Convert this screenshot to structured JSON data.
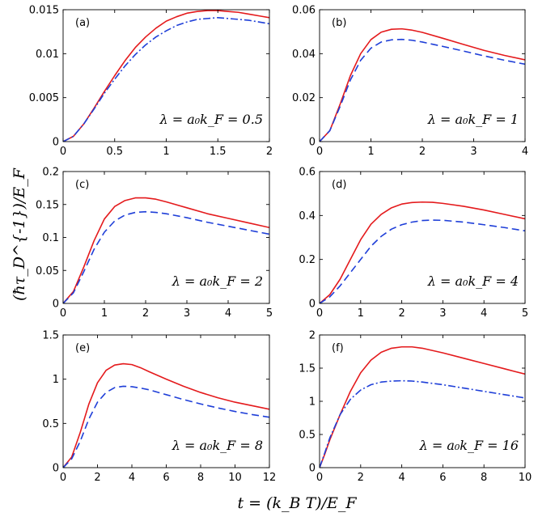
{
  "chart_data": {
    "type": "line",
    "xlabel": "t = (k_B T)/E_F",
    "ylabel": "(ħτ_D^{-1})/E_F",
    "colors": {
      "solid": "#e41a1c",
      "other": "#1f3fd8"
    },
    "panels": [
      {
        "label": "(a)",
        "lambda_text": "λ = a₀k_F = 0.5",
        "xlim": [
          0,
          2
        ],
        "ylim": [
          0,
          0.015
        ],
        "xticks": [
          0,
          0.5,
          1,
          1.5,
          2
        ],
        "xtick_labels": [
          "0",
          "0.5",
          "1",
          "1.5",
          "2"
        ],
        "yticks": [
          0,
          0.005,
          0.01,
          0.015
        ],
        "ytick_labels": [
          "0",
          "0.005",
          "0.01",
          "0.015"
        ],
        "series": [
          {
            "name": "red solid",
            "color": "#e41a1c",
            "dash": "solid",
            "x": [
              0,
              0.1,
              0.2,
              0.3,
              0.4,
              0.5,
              0.6,
              0.7,
              0.8,
              0.9,
              1.0,
              1.1,
              1.2,
              1.3,
              1.4,
              1.5,
              1.6,
              1.7,
              1.8,
              1.9,
              2.0
            ],
            "y": [
              0,
              0.0006,
              0.002,
              0.0038,
              0.0057,
              0.0075,
              0.0092,
              0.0107,
              0.0119,
              0.0129,
              0.0137,
              0.0142,
              0.0146,
              0.0148,
              0.0149,
              0.0149,
              0.0148,
              0.0147,
              0.0145,
              0.0143,
              0.0141
            ]
          },
          {
            "name": "blue dash-dot",
            "color": "#1f3fd8",
            "dash": "dashdot",
            "x": [
              0,
              0.1,
              0.2,
              0.3,
              0.4,
              0.5,
              0.6,
              0.7,
              0.8,
              0.9,
              1.0,
              1.1,
              1.2,
              1.3,
              1.4,
              1.5,
              1.6,
              1.7,
              1.8,
              1.9,
              2.0
            ],
            "y": [
              0,
              0.0006,
              0.002,
              0.0037,
              0.0055,
              0.0071,
              0.0086,
              0.0099,
              0.011,
              0.0119,
              0.0126,
              0.0132,
              0.0136,
              0.0139,
              0.014,
              0.0141,
              0.014,
              0.0139,
              0.0138,
              0.0136,
              0.0134
            ]
          }
        ]
      },
      {
        "label": "(b)",
        "lambda_text": "λ = a₀k_F = 1",
        "xlim": [
          0,
          4
        ],
        "ylim": [
          0,
          0.06
        ],
        "xticks": [
          0,
          1,
          2,
          3,
          4
        ],
        "xtick_labels": [
          "0",
          "1",
          "2",
          "3",
          "4"
        ],
        "yticks": [
          0,
          0.02,
          0.04,
          0.06
        ],
        "ytick_labels": [
          "0",
          "0.02",
          "0.04",
          "0.06"
        ],
        "series": [
          {
            "name": "red solid",
            "color": "#e41a1c",
            "dash": "solid",
            "x": [
              0,
              0.2,
              0.4,
              0.6,
              0.8,
              1.0,
              1.2,
              1.4,
              1.6,
              1.8,
              2.0,
              2.4,
              2.8,
              3.2,
              3.6,
              4.0
            ],
            "y": [
              0,
              0.005,
              0.017,
              0.03,
              0.04,
              0.0464,
              0.0498,
              0.0511,
              0.0513,
              0.0507,
              0.0497,
              0.047,
              0.0442,
              0.0415,
              0.0392,
              0.0372
            ]
          },
          {
            "name": "blue dashed",
            "color": "#1f3fd8",
            "dash": "dashed",
            "x": [
              0,
              0.2,
              0.4,
              0.6,
              0.8,
              1.0,
              1.2,
              1.4,
              1.6,
              1.8,
              2.0,
              2.4,
              2.8,
              3.2,
              3.6,
              4.0
            ],
            "y": [
              0,
              0.005,
              0.016,
              0.028,
              0.037,
              0.0425,
              0.0453,
              0.0463,
              0.0465,
              0.0461,
              0.0453,
              0.0433,
              0.0412,
              0.039,
              0.037,
              0.0352
            ]
          }
        ]
      },
      {
        "label": "(c)",
        "lambda_text": "λ = a₀k_F = 2",
        "xlim": [
          0,
          5
        ],
        "ylim": [
          0,
          0.2
        ],
        "xticks": [
          0,
          1,
          2,
          3,
          4,
          5
        ],
        "xtick_labels": [
          "0",
          "1",
          "2",
          "3",
          "4",
          "5"
        ],
        "yticks": [
          0,
          0.05,
          0.1,
          0.15,
          0.2
        ],
        "ytick_labels": [
          "0",
          "0.05",
          "0.1",
          "0.15",
          "0.2"
        ],
        "series": [
          {
            "name": "red solid",
            "color": "#e41a1c",
            "dash": "solid",
            "x": [
              0,
              0.25,
              0.5,
              0.75,
              1.0,
              1.25,
              1.5,
              1.75,
              2.0,
              2.25,
              2.5,
              3.0,
              3.5,
              4.0,
              4.5,
              5.0
            ],
            "y": [
              0,
              0.018,
              0.055,
              0.095,
              0.128,
              0.147,
              0.156,
              0.16,
              0.16,
              0.158,
              0.154,
              0.145,
              0.136,
              0.129,
              0.122,
              0.115
            ]
          },
          {
            "name": "blue dashed",
            "color": "#1f3fd8",
            "dash": "dashed",
            "x": [
              0,
              0.25,
              0.5,
              0.75,
              1.0,
              1.25,
              1.5,
              1.75,
              2.0,
              2.25,
              2.5,
              3.0,
              3.5,
              4.0,
              4.5,
              5.0
            ],
            "y": [
              0,
              0.016,
              0.048,
              0.082,
              0.108,
              0.125,
              0.134,
              0.138,
              0.139,
              0.138,
              0.136,
              0.13,
              0.123,
              0.117,
              0.111,
              0.105
            ]
          }
        ]
      },
      {
        "label": "(d)",
        "lambda_text": "λ = a₀k_F = 4",
        "xlim": [
          0,
          5
        ],
        "ylim": [
          0,
          0.6
        ],
        "xticks": [
          0,
          1,
          2,
          3,
          4,
          5
        ],
        "xtick_labels": [
          "0",
          "1",
          "2",
          "3",
          "4",
          "5"
        ],
        "yticks": [
          0,
          0.2,
          0.4,
          0.6
        ],
        "ytick_labels": [
          "0",
          "0.2",
          "0.4",
          "0.6"
        ],
        "series": [
          {
            "name": "red solid",
            "color": "#e41a1c",
            "dash": "solid",
            "x": [
              0,
              0.25,
              0.5,
              0.75,
              1.0,
              1.25,
              1.5,
              1.75,
              2.0,
              2.25,
              2.5,
              2.75,
              3.0,
              3.5,
              4.0,
              4.5,
              5.0
            ],
            "y": [
              0,
              0.04,
              0.11,
              0.2,
              0.29,
              0.36,
              0.405,
              0.435,
              0.452,
              0.459,
              0.461,
              0.46,
              0.455,
              0.442,
              0.425,
              0.405,
              0.385
            ]
          },
          {
            "name": "blue dashed",
            "color": "#1f3fd8",
            "dash": "dashed",
            "x": [
              0,
              0.25,
              0.5,
              0.75,
              1.0,
              1.25,
              1.5,
              1.75,
              2.0,
              2.25,
              2.5,
              2.75,
              3.0,
              3.5,
              4.0,
              4.5,
              5.0
            ],
            "y": [
              0,
              0.03,
              0.08,
              0.14,
              0.2,
              0.26,
              0.305,
              0.338,
              0.358,
              0.37,
              0.377,
              0.379,
              0.378,
              0.37,
              0.358,
              0.345,
              0.33
            ]
          }
        ]
      },
      {
        "label": "(e)",
        "lambda_text": "λ = a₀k_F = 8",
        "xlim": [
          0,
          12
        ],
        "ylim": [
          0,
          1.5
        ],
        "xticks": [
          0,
          2,
          4,
          6,
          8,
          10,
          12
        ],
        "xtick_labels": [
          "0",
          "2",
          "4",
          "6",
          "8",
          "10",
          "12"
        ],
        "yticks": [
          0,
          0.5,
          1,
          1.5
        ],
        "ytick_labels": [
          "0",
          "0.5",
          "1",
          "1.5"
        ],
        "series": [
          {
            "name": "red solid",
            "color": "#e41a1c",
            "dash": "solid",
            "x": [
              0,
              0.5,
              1.0,
              1.5,
              2.0,
              2.5,
              3.0,
              3.5,
              4.0,
              4.5,
              5.0,
              6.0,
              7.0,
              8.0,
              9.0,
              10.0,
              11.0,
              12.0
            ],
            "y": [
              0,
              0.12,
              0.4,
              0.72,
              0.96,
              1.1,
              1.16,
              1.175,
              1.165,
              1.13,
              1.085,
              1.0,
              0.92,
              0.85,
              0.79,
              0.74,
              0.7,
              0.66
            ]
          },
          {
            "name": "blue dashed",
            "color": "#1f3fd8",
            "dash": "dashed",
            "x": [
              0,
              0.5,
              1.0,
              1.5,
              2.0,
              2.5,
              3.0,
              3.5,
              4.0,
              4.5,
              5.0,
              6.0,
              7.0,
              8.0,
              9.0,
              10.0,
              11.0,
              12.0
            ],
            "y": [
              0,
              0.1,
              0.3,
              0.55,
              0.74,
              0.85,
              0.905,
              0.92,
              0.915,
              0.9,
              0.88,
              0.825,
              0.77,
              0.72,
              0.675,
              0.635,
              0.6,
              0.57
            ]
          }
        ]
      },
      {
        "label": "(f)",
        "lambda_text": "λ = a₀k_F = 16",
        "xlim": [
          0,
          10
        ],
        "ylim": [
          0,
          2
        ],
        "xticks": [
          0,
          2,
          4,
          6,
          8,
          10
        ],
        "xtick_labels": [
          "0",
          "2",
          "4",
          "6",
          "8",
          "10"
        ],
        "yticks": [
          0,
          0.5,
          1,
          1.5,
          2
        ],
        "ytick_labels": [
          "0",
          "0.5",
          "1",
          "1.5",
          "2"
        ],
        "series": [
          {
            "name": "red solid",
            "color": "#e41a1c",
            "dash": "solid",
            "x": [
              0,
              0.25,
              0.5,
              1.0,
              1.5,
              2.0,
              2.5,
              3.0,
              3.5,
              4.0,
              4.5,
              5.0,
              6.0,
              7.0,
              8.0,
              9.0,
              10.0
            ],
            "y": [
              0,
              0.2,
              0.42,
              0.8,
              1.15,
              1.43,
              1.62,
              1.74,
              1.8,
              1.82,
              1.82,
              1.8,
              1.73,
              1.65,
              1.57,
              1.49,
              1.41
            ]
          },
          {
            "name": "blue dash-dot",
            "color": "#1f3fd8",
            "dash": "dashdot",
            "x": [
              0,
              0.25,
              0.5,
              1.0,
              1.5,
              2.0,
              2.5,
              3.0,
              3.5,
              4.0,
              4.5,
              5.0,
              6.0,
              7.0,
              8.0,
              9.0,
              10.0
            ],
            "y": [
              0,
              0.22,
              0.45,
              0.8,
              1.03,
              1.17,
              1.25,
              1.29,
              1.305,
              1.31,
              1.305,
              1.29,
              1.25,
              1.2,
              1.15,
              1.1,
              1.05
            ]
          }
        ]
      }
    ]
  }
}
